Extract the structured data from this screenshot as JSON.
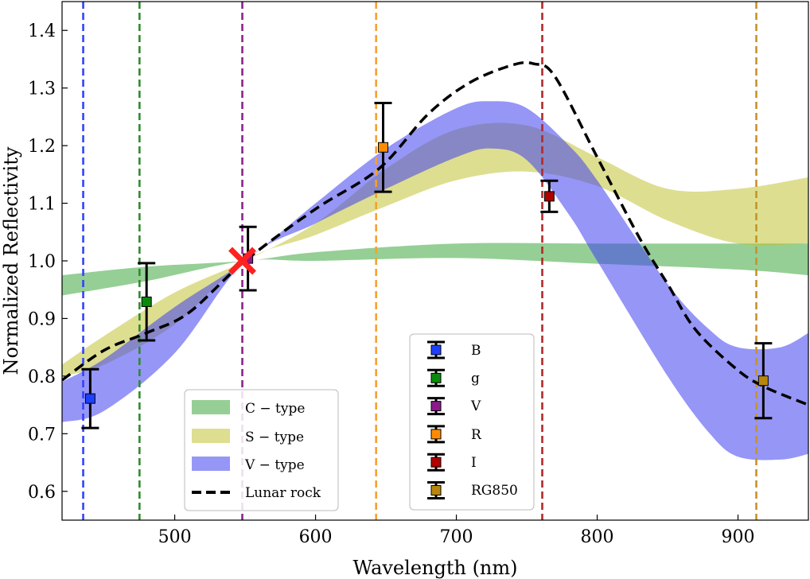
{
  "chart_data": {
    "type": "line",
    "xlabel": "Wavelength (nm)",
    "ylabel": "Normalized Reflectivity",
    "xlim": [
      420,
      950
    ],
    "ylim": [
      0.55,
      1.45
    ],
    "xticks": [
      500,
      600,
      700,
      800,
      900
    ],
    "yticks": [
      0.6,
      0.7,
      0.8,
      0.9,
      1.0,
      1.1,
      1.2,
      1.3,
      1.4
    ],
    "xtick_labels": [
      "500",
      "600",
      "700",
      "800",
      "900"
    ],
    "ytick_labels": [
      "0.6",
      "0.7",
      "0.8",
      "0.9",
      "1.0",
      "1.1",
      "1.2",
      "1.3",
      "1.4"
    ],
    "filter_lines": [
      {
        "name": "B",
        "x": 435,
        "color": "#3341ff"
      },
      {
        "name": "g",
        "x": 475,
        "color": "#2e8b2e"
      },
      {
        "name": "V",
        "x": 548,
        "color": "#8b238b"
      },
      {
        "name": "R",
        "x": 643,
        "color": "#f5a030"
      },
      {
        "name": "I",
        "x": 761,
        "color": "#b02a2a"
      },
      {
        "name": "RG850",
        "x": 913,
        "color": "#c8922a"
      }
    ],
    "bands": [
      {
        "name": "C − type",
        "color": "#2ca02c",
        "opacity": 0.5,
        "x": [
          420,
          480,
          550,
          600,
          700,
          800,
          900,
          950
        ],
        "upper": [
          0.975,
          0.99,
          1.0,
          1.015,
          1.03,
          1.03,
          1.03,
          1.03
        ],
        "lower": [
          0.94,
          0.965,
          1.0,
          1.0,
          1.005,
          0.995,
          0.985,
          0.975
        ]
      },
      {
        "name": "S − type",
        "color": "#bcbd22",
        "opacity": 0.5,
        "x": [
          420,
          450,
          500,
          550,
          600,
          650,
          700,
          750,
          800,
          850,
          900,
          950
        ],
        "upper": [
          0.82,
          0.87,
          0.945,
          1.0,
          1.065,
          1.16,
          1.228,
          1.235,
          1.18,
          1.125,
          1.125,
          1.145
        ],
        "lower": [
          0.8,
          0.82,
          0.89,
          1.0,
          1.045,
          1.095,
          1.14,
          1.155,
          1.13,
          1.07,
          1.03,
          1.03
        ]
      },
      {
        "name": "V − type",
        "color": "#4040f0",
        "opacity": 0.55,
        "x": [
          420,
          450,
          500,
          550,
          600,
          650,
          700,
          725,
          750,
          780,
          800,
          850,
          880,
          900,
          930,
          950
        ],
        "upper": [
          0.79,
          0.83,
          0.92,
          1.0,
          1.1,
          1.195,
          1.265,
          1.277,
          1.265,
          1.2,
          1.14,
          0.96,
          0.88,
          0.85,
          0.85,
          0.875
        ],
        "lower": [
          0.72,
          0.74,
          0.84,
          1.0,
          1.065,
          1.125,
          1.18,
          1.195,
          1.175,
          1.08,
          1.0,
          0.8,
          0.7,
          0.66,
          0.655,
          0.665
        ]
      }
    ],
    "lunar_rock": {
      "name": "Lunar rock",
      "x": [
        420,
        450,
        480,
        510,
        550,
        600,
        645,
        680,
        710,
        740,
        755,
        770,
        800,
        830,
        850,
        870,
        900,
        920,
        950
      ],
      "y": [
        0.793,
        0.845,
        0.875,
        0.91,
        1.0,
        1.09,
        1.16,
        1.255,
        1.31,
        1.34,
        1.342,
        1.32,
        1.18,
        1.04,
        0.96,
        0.88,
        0.81,
        0.78,
        0.75
      ]
    },
    "data_points": [
      {
        "name": "B",
        "x": 440,
        "y": 0.761,
        "err": 0.051,
        "color": "#1f3fff"
      },
      {
        "name": "g",
        "x": 480,
        "y": 0.929,
        "err": 0.067,
        "color": "#0a8a0a"
      },
      {
        "name": "V",
        "x": 552,
        "y": 1.004,
        "err": 0.055,
        "color": "#8b1a8b"
      },
      {
        "name": "R",
        "x": 648,
        "y": 1.197,
        "err": 0.077,
        "color": "#ff8c00"
      },
      {
        "name": "I",
        "x": 766,
        "y": 1.112,
        "err": 0.027,
        "color": "#b00000"
      },
      {
        "name": "RG850",
        "x": 918,
        "y": 0.792,
        "err": 0.065,
        "color": "#b8860b"
      }
    ],
    "normalization_marker": {
      "x": 548,
      "y": 1.0,
      "color": "#ff2020"
    },
    "legend_left": {
      "position": "lower-center-left",
      "entries": [
        "C − type",
        "S − type",
        "V − type",
        "Lunar rock"
      ]
    },
    "legend_right": {
      "position": "lower-center-right",
      "entries": [
        "B",
        "g",
        "V",
        "R",
        "I",
        "RG850"
      ]
    }
  }
}
